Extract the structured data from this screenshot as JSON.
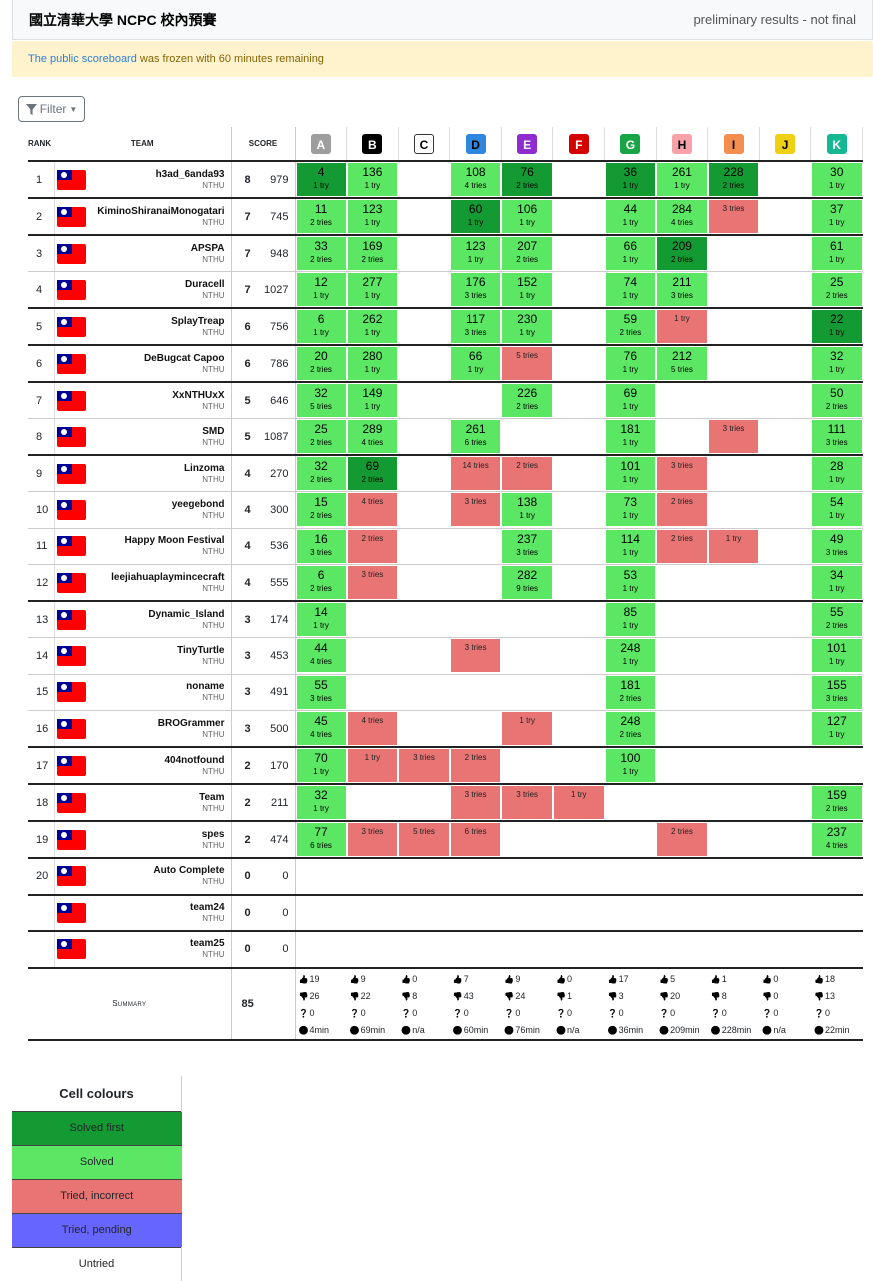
{
  "header": {
    "title": "國立清華大學 NCPC 校內預賽",
    "status": "preliminary results - not final"
  },
  "alert": {
    "link": "The public scoreboard",
    "text": " was frozen with 60 minutes remaining"
  },
  "filter": {
    "label": "Filter"
  },
  "table_headers": {
    "rank": "RANK",
    "team": "TEAM",
    "score": "SCORE"
  },
  "problems": [
    {
      "label": "A",
      "color": "#9e9e9e",
      "text": "#ffffff"
    },
    {
      "label": "B",
      "color": "#000000",
      "text": "#ffffff"
    },
    {
      "label": "C",
      "color": "#ffffff",
      "text": "#000000"
    },
    {
      "label": "D",
      "color": "#2e86de",
      "text": "#000000"
    },
    {
      "label": "E",
      "color": "#8e2bd1",
      "text": "#ffffff"
    },
    {
      "label": "F",
      "color": "#d40000",
      "text": "#ffffff"
    },
    {
      "label": "G",
      "color": "#19a446",
      "text": "#ffffff"
    },
    {
      "label": "H",
      "color": "#f7a1a8",
      "text": "#000000"
    },
    {
      "label": "I",
      "color": "#f28f4f",
      "text": "#000000"
    },
    {
      "label": "J",
      "color": "#f0d012",
      "text": "#000000"
    },
    {
      "label": "K",
      "color": "#14b893",
      "text": "#ffffff"
    }
  ],
  "teams": [
    {
      "rank": "1",
      "name": "h3ad_6anda93",
      "aff": "NTHU",
      "solved": "8",
      "penalty": "979",
      "cells": [
        [
          "sf",
          "4",
          "1 try"
        ],
        [
          "ok",
          "136",
          "1 try"
        ],
        null,
        [
          "ok",
          "108",
          "4 tries"
        ],
        [
          "sf",
          "76",
          "2 tries"
        ],
        null,
        [
          "sf",
          "36",
          "1 try"
        ],
        [
          "ok",
          "261",
          "1 try"
        ],
        [
          "sf",
          "228",
          "2 tries"
        ],
        null,
        [
          "ok",
          "30",
          "1 try"
        ]
      ]
    },
    {
      "rank": "2",
      "name": "KiminoShiranaiMonogatari",
      "aff": "NTHU",
      "solved": "7",
      "penalty": "745",
      "cells": [
        [
          "ok",
          "11",
          "2 tries"
        ],
        [
          "ok",
          "123",
          "1 try"
        ],
        null,
        [
          "sf",
          "60",
          "1 try"
        ],
        [
          "ok",
          "106",
          "1 try"
        ],
        null,
        [
          "ok",
          "44",
          "1 try"
        ],
        [
          "ok",
          "284",
          "4 tries"
        ],
        [
          "wa",
          "",
          "3 tries"
        ],
        null,
        [
          "ok",
          "37",
          "1 try"
        ]
      ]
    },
    {
      "rank": "3",
      "name": "APSPA",
      "aff": "NTHU",
      "solved": "7",
      "penalty": "948",
      "cells": [
        [
          "ok",
          "33",
          "2 tries"
        ],
        [
          "ok",
          "169",
          "2 tries"
        ],
        null,
        [
          "ok",
          "123",
          "1 try"
        ],
        [
          "ok",
          "207",
          "2 tries"
        ],
        null,
        [
          "ok",
          "66",
          "1 try"
        ],
        [
          "sf",
          "209",
          "2 tries"
        ],
        null,
        null,
        [
          "ok",
          "61",
          "1 try"
        ]
      ]
    },
    {
      "rank": "4",
      "name": "Duracell",
      "aff": "NTHU",
      "solved": "7",
      "penalty": "1027",
      "cells": [
        [
          "ok",
          "12",
          "1 try"
        ],
        [
          "ok",
          "277",
          "1 try"
        ],
        null,
        [
          "ok",
          "176",
          "3 tries"
        ],
        [
          "ok",
          "152",
          "1 try"
        ],
        null,
        [
          "ok",
          "74",
          "1 try"
        ],
        [
          "ok",
          "211",
          "3 tries"
        ],
        null,
        null,
        [
          "ok",
          "25",
          "2 tries"
        ]
      ]
    },
    {
      "rank": "5",
      "name": "SplayTreap",
      "aff": "NTHU",
      "solved": "6",
      "penalty": "756",
      "cells": [
        [
          "ok",
          "6",
          "1 try"
        ],
        [
          "ok",
          "262",
          "1 try"
        ],
        null,
        [
          "ok",
          "117",
          "3 tries"
        ],
        [
          "ok",
          "230",
          "1 try"
        ],
        null,
        [
          "ok",
          "59",
          "2 tries"
        ],
        [
          "wa",
          "",
          "1 try"
        ],
        null,
        null,
        [
          "sf",
          "22",
          "1 try"
        ]
      ]
    },
    {
      "rank": "6",
      "name": "DeBugcat Capoo",
      "aff": "NTHU",
      "solved": "6",
      "penalty": "786",
      "cells": [
        [
          "ok",
          "20",
          "2 tries"
        ],
        [
          "ok",
          "280",
          "1 try"
        ],
        null,
        [
          "ok",
          "66",
          "1 try"
        ],
        [
          "wa",
          "",
          "5 tries"
        ],
        null,
        [
          "ok",
          "76",
          "1 try"
        ],
        [
          "ok",
          "212",
          "5 tries"
        ],
        null,
        null,
        [
          "ok",
          "32",
          "1 try"
        ]
      ]
    },
    {
      "rank": "7",
      "name": "XxNTHUxX",
      "aff": "NTHU",
      "solved": "5",
      "penalty": "646",
      "cells": [
        [
          "ok",
          "32",
          "5 tries"
        ],
        [
          "ok",
          "149",
          "1 try"
        ],
        null,
        null,
        [
          "ok",
          "226",
          "2 tries"
        ],
        null,
        [
          "ok",
          "69",
          "1 try"
        ],
        null,
        null,
        null,
        [
          "ok",
          "50",
          "2 tries"
        ]
      ]
    },
    {
      "rank": "8",
      "name": "SMD",
      "aff": "NTHU",
      "solved": "5",
      "penalty": "1087",
      "cells": [
        [
          "ok",
          "25",
          "2 tries"
        ],
        [
          "ok",
          "289",
          "4 tries"
        ],
        null,
        [
          "ok",
          "261",
          "6 tries"
        ],
        null,
        null,
        [
          "ok",
          "181",
          "1 try"
        ],
        null,
        [
          "wa",
          "",
          "3 tries"
        ],
        null,
        [
          "ok",
          "111",
          "3 tries"
        ]
      ]
    },
    {
      "rank": "9",
      "name": "Linzoma",
      "aff": "NTHU",
      "solved": "4",
      "penalty": "270",
      "cells": [
        [
          "ok",
          "32",
          "2 tries"
        ],
        [
          "sf",
          "69",
          "2 tries"
        ],
        null,
        [
          "wa",
          "",
          "14 tries"
        ],
        [
          "wa",
          "",
          "2 tries"
        ],
        null,
        [
          "ok",
          "101",
          "1 try"
        ],
        [
          "wa",
          "",
          "3 tries"
        ],
        null,
        null,
        [
          "ok",
          "28",
          "1 try"
        ]
      ]
    },
    {
      "rank": "10",
      "name": "yeegebond",
      "aff": "NTHU",
      "solved": "4",
      "penalty": "300",
      "cells": [
        [
          "ok",
          "15",
          "2 tries"
        ],
        [
          "wa",
          "",
          "4 tries"
        ],
        null,
        [
          "wa",
          "",
          "3 tries"
        ],
        [
          "ok",
          "138",
          "1 try"
        ],
        null,
        [
          "ok",
          "73",
          "1 try"
        ],
        [
          "wa",
          "",
          "2 tries"
        ],
        null,
        null,
        [
          "ok",
          "54",
          "1 try"
        ]
      ]
    },
    {
      "rank": "11",
      "name": "Happy Moon Festival",
      "aff": "NTHU",
      "solved": "4",
      "penalty": "536",
      "cells": [
        [
          "ok",
          "16",
          "3 tries"
        ],
        [
          "wa",
          "",
          "2 tries"
        ],
        null,
        null,
        [
          "ok",
          "237",
          "3 tries"
        ],
        null,
        [
          "ok",
          "114",
          "1 try"
        ],
        [
          "wa",
          "",
          "2 tries"
        ],
        [
          "wa",
          "",
          "1 try"
        ],
        null,
        [
          "ok",
          "49",
          "3 tries"
        ]
      ]
    },
    {
      "rank": "12",
      "name": "leejiahuaplaymincecraft",
      "aff": "NTHU",
      "solved": "4",
      "penalty": "555",
      "cells": [
        [
          "ok",
          "6",
          "2 tries"
        ],
        [
          "wa",
          "",
          "3 tries"
        ],
        null,
        null,
        [
          "ok",
          "282",
          "9 tries"
        ],
        null,
        [
          "ok",
          "53",
          "1 try"
        ],
        null,
        null,
        null,
        [
          "ok",
          "34",
          "1 try"
        ]
      ]
    },
    {
      "rank": "13",
      "name": "Dynamic_Island",
      "aff": "NTHU",
      "solved": "3",
      "penalty": "174",
      "cells": [
        [
          "ok",
          "14",
          "1 try"
        ],
        null,
        null,
        null,
        null,
        null,
        [
          "ok",
          "85",
          "1 try"
        ],
        null,
        null,
        null,
        [
          "ok",
          "55",
          "2 tries"
        ]
      ]
    },
    {
      "rank": "14",
      "name": "TinyTurtle",
      "aff": "NTHU",
      "solved": "3",
      "penalty": "453",
      "cells": [
        [
          "ok",
          "44",
          "4 tries"
        ],
        null,
        null,
        [
          "wa",
          "",
          "3 tries"
        ],
        null,
        null,
        [
          "ok",
          "248",
          "1 try"
        ],
        null,
        null,
        null,
        [
          "ok",
          "101",
          "1 try"
        ]
      ]
    },
    {
      "rank": "15",
      "name": "noname",
      "aff": "NTHU",
      "solved": "3",
      "penalty": "491",
      "cells": [
        [
          "ok",
          "55",
          "3 tries"
        ],
        null,
        null,
        null,
        null,
        null,
        [
          "ok",
          "181",
          "2 tries"
        ],
        null,
        null,
        null,
        [
          "ok",
          "155",
          "3 tries"
        ]
      ]
    },
    {
      "rank": "16",
      "name": "BROGrammer",
      "aff": "NTHU",
      "solved": "3",
      "penalty": "500",
      "cells": [
        [
          "ok",
          "45",
          "4 tries"
        ],
        [
          "wa",
          "",
          "4 tries"
        ],
        null,
        null,
        [
          "wa",
          "",
          "1 try"
        ],
        null,
        [
          "ok",
          "248",
          "2 tries"
        ],
        null,
        null,
        null,
        [
          "ok",
          "127",
          "1 try"
        ]
      ]
    },
    {
      "rank": "17",
      "name": "404notfound",
      "aff": "NTHU",
      "solved": "2",
      "penalty": "170",
      "cells": [
        [
          "ok",
          "70",
          "1 try"
        ],
        [
          "wa",
          "",
          "1 try"
        ],
        [
          "wa",
          "",
          "3 tries"
        ],
        [
          "wa",
          "",
          "2 tries"
        ],
        null,
        null,
        [
          "ok",
          "100",
          "1 try"
        ],
        null,
        null,
        null,
        null
      ]
    },
    {
      "rank": "18",
      "name": "Team",
      "aff": "NTHU",
      "solved": "2",
      "penalty": "211",
      "cells": [
        [
          "ok",
          "32",
          "1 try"
        ],
        null,
        null,
        [
          "wa",
          "",
          "3 tries"
        ],
        [
          "wa",
          "",
          "3 tries"
        ],
        [
          "wa",
          "",
          "1 try"
        ],
        null,
        null,
        null,
        null,
        [
          "ok",
          "159",
          "2 tries"
        ]
      ]
    },
    {
      "rank": "19",
      "name": "spes",
      "aff": "NTHU",
      "solved": "2",
      "penalty": "474",
      "cells": [
        [
          "ok",
          "77",
          "6 tries"
        ],
        [
          "wa",
          "",
          "3 tries"
        ],
        [
          "wa",
          "",
          "5 tries"
        ],
        [
          "wa",
          "",
          "6 tries"
        ],
        null,
        null,
        null,
        [
          "wa",
          "",
          "2 tries"
        ],
        null,
        null,
        [
          "ok",
          "237",
          "4 tries"
        ]
      ]
    },
    {
      "rank": "20",
      "name": "Auto Complete",
      "aff": "NTHU",
      "solved": "0",
      "penalty": "0",
      "cells": [
        null,
        null,
        null,
        null,
        null,
        null,
        null,
        null,
        null,
        null,
        null
      ]
    },
    {
      "rank": "",
      "name": "team24",
      "aff": "NTHU",
      "solved": "0",
      "penalty": "0",
      "cells": [
        null,
        null,
        null,
        null,
        null,
        null,
        null,
        null,
        null,
        null,
        null
      ]
    },
    {
      "rank": "",
      "name": "team25",
      "aff": "NTHU",
      "solved": "0",
      "penalty": "0",
      "cells": [
        null,
        null,
        null,
        null,
        null,
        null,
        null,
        null,
        null,
        null,
        null
      ]
    }
  ],
  "summary": {
    "label": "Summary",
    "total": "85",
    "per_problem": [
      {
        "accepted": "19",
        "rejected": "26",
        "pending": "0",
        "first": "4min"
      },
      {
        "accepted": "9",
        "rejected": "22",
        "pending": "0",
        "first": "69min"
      },
      {
        "accepted": "0",
        "rejected": "8",
        "pending": "0",
        "first": "n/a"
      },
      {
        "accepted": "7",
        "rejected": "43",
        "pending": "0",
        "first": "60min"
      },
      {
        "accepted": "9",
        "rejected": "24",
        "pending": "0",
        "first": "76min"
      },
      {
        "accepted": "0",
        "rejected": "1",
        "pending": "0",
        "first": "n/a"
      },
      {
        "accepted": "17",
        "rejected": "3",
        "pending": "0",
        "first": "36min"
      },
      {
        "accepted": "5",
        "rejected": "20",
        "pending": "0",
        "first": "209min"
      },
      {
        "accepted": "1",
        "rejected": "8",
        "pending": "0",
        "first": "228min"
      },
      {
        "accepted": "0",
        "rejected": "0",
        "pending": "0",
        "first": "n/a"
      },
      {
        "accepted": "18",
        "rejected": "13",
        "pending": "0",
        "first": "22min"
      }
    ]
  },
  "legend": {
    "title": "Cell colours",
    "items": [
      {
        "key": "sf",
        "label": "Solved first"
      },
      {
        "key": "ok",
        "label": "Solved"
      },
      {
        "key": "wa",
        "label": "Tried, incorrect"
      },
      {
        "key": "pd",
        "label": "Tried, pending"
      },
      {
        "key": "un",
        "label": "Untried"
      }
    ]
  },
  "colors": {
    "solved_first": "#139a32",
    "solved": "#5be763",
    "tried_incorrect": "#e97474",
    "tried_pending": "#6666ff",
    "alert_bg": "#fff3cd"
  },
  "icons": {
    "filter": "filter-icon",
    "flag": "taiwan-flag-icon",
    "accepted": "thumbs-up-icon",
    "rejected": "thumbs-down-icon",
    "pending": "question-circle-icon",
    "first": "clock-icon"
  }
}
